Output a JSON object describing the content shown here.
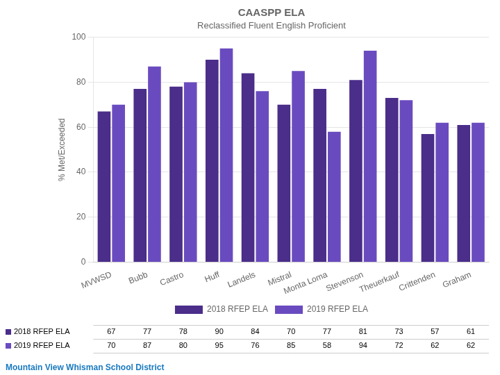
{
  "chart_data": {
    "type": "bar",
    "title": "CAASPP ELA",
    "subtitle": "Reclassified Fluent English Proficient",
    "ylabel": "% Met/Exceeded",
    "categories": [
      "MVWSD",
      "Bubb",
      "Castro",
      "Huff",
      "Landels",
      "Mistral",
      "Monta Loma",
      "Stevenson",
      "Theuerkauf",
      "Crittenden",
      "Graham"
    ],
    "series": [
      {
        "name": "2018 RFEP ELA",
        "color": "#4b2d8a",
        "values": [
          67,
          77,
          78,
          90,
          84,
          70,
          77,
          81,
          73,
          57,
          61
        ]
      },
      {
        "name": "2019 RFEP ELA",
        "color": "#6a4bbf",
        "values": [
          70,
          87,
          80,
          95,
          76,
          85,
          58,
          94,
          72,
          62,
          62
        ]
      }
    ],
    "ylim": [
      0,
      100
    ],
    "yticks": [
      0,
      20,
      40,
      60,
      80,
      100
    ],
    "grid": true,
    "legend": "bottom",
    "footer": {
      "text": "Mountain View Whisman School District",
      "color": "#1a7abf"
    }
  }
}
